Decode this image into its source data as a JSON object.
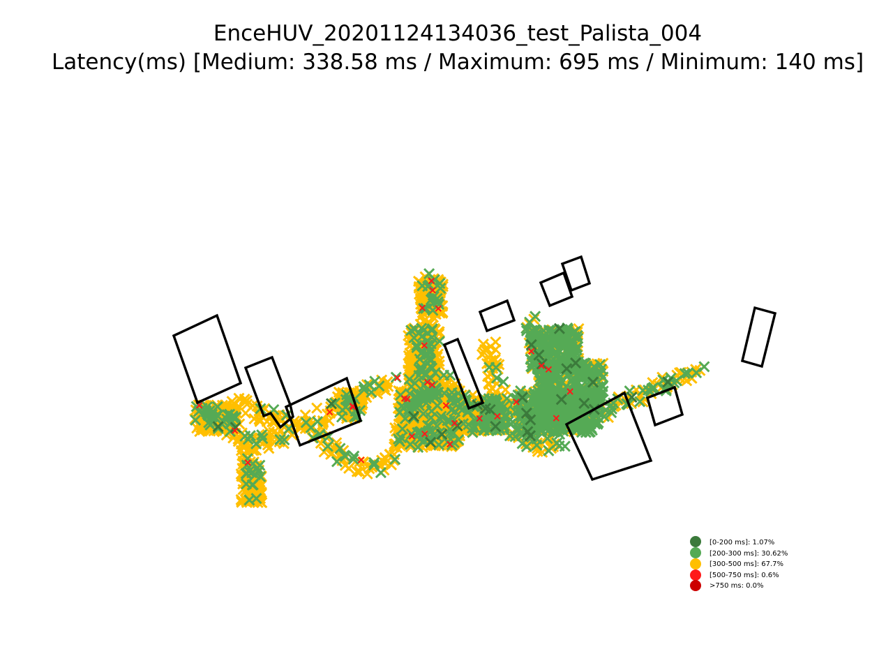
{
  "title_line1": "EnceHUV_20201124134036_test_Palista_004",
  "title_line2": "Latency(ms) [Medium: 338.58 ms / Maximum: 695 ms / Minimum: 140 ms]",
  "chart_data": {
    "type": "scatter",
    "marker": "x",
    "title": "EnceHUV_20201124134036_test_Palista_004",
    "subtitle": "Latency(ms) [Medium: 338.58 ms / Maximum: 695 ms / Minimum: 140 ms]",
    "axes_visible": false,
    "grid": false,
    "legend_placement": "bottom-right",
    "stats": {
      "medium_ms": 338.58,
      "maximum_ms": 695,
      "minimum_ms": 140
    },
    "series": [
      {
        "name": "[0-200 ms]: 1.07%",
        "range": "[0-200 ms]",
        "percent": 1.07,
        "color": "#3b7a3b"
      },
      {
        "name": "[200-300 ms]: 30.62%",
        "range": "[200-300 ms]",
        "percent": 30.62,
        "color": "#55aa55"
      },
      {
        "name": "[300-500 ms]: 67.7%",
        "range": "[300-500 ms]",
        "percent": 67.7,
        "color": "#ffbf00"
      },
      {
        "name": "[500-750 ms]: 0.6%",
        "range": "[500-750 ms]",
        "percent": 0.6,
        "color": "#ff1a1a"
      },
      {
        "name": ">750 ms: 0.0%",
        "range": ">750 ms",
        "percent": 0.0,
        "color": "#cc0000"
      }
    ]
  }
}
